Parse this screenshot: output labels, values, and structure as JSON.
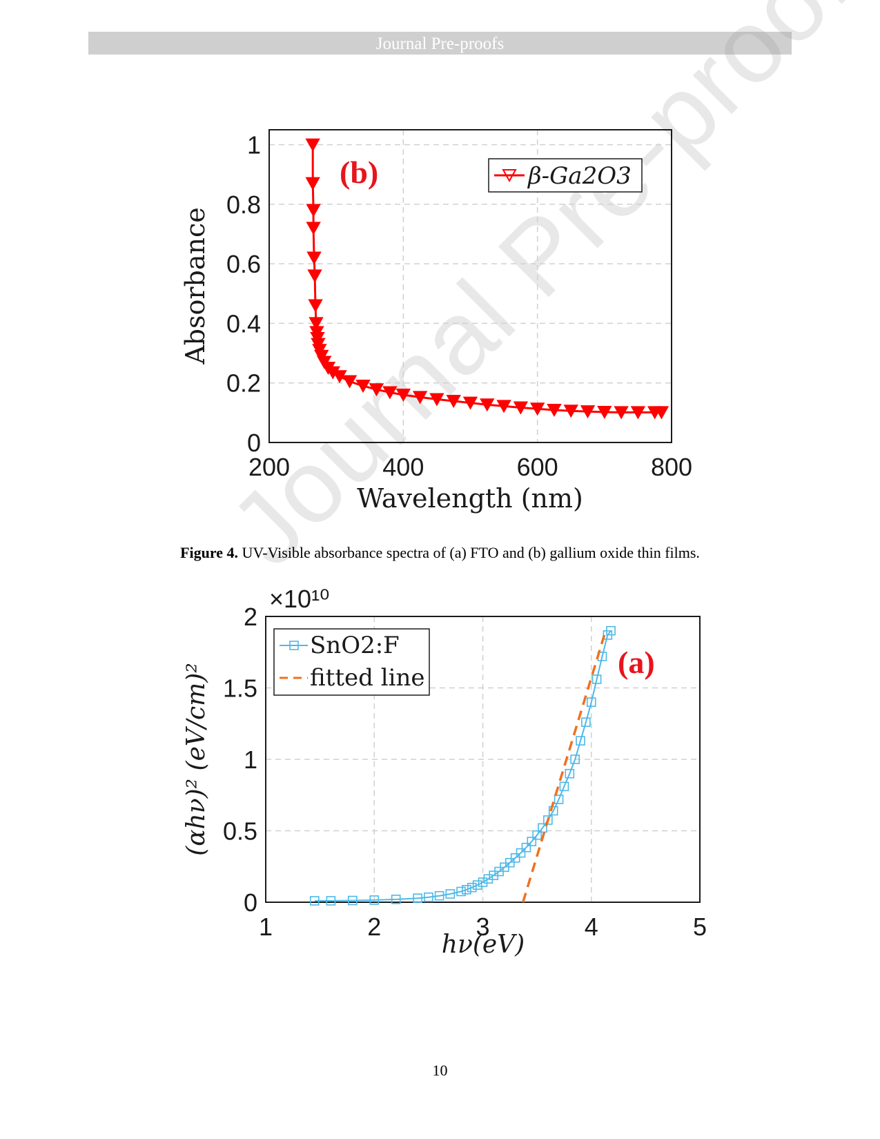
{
  "header": {
    "text": "Journal Pre-proofs"
  },
  "watermark": {
    "text": "Journal Pre-proofs"
  },
  "caption": {
    "label": "Figure 4.",
    "text": " UV-Visible absorbance spectra of (a) FTO and (b) gallium oxide thin films."
  },
  "page_number": "10",
  "colors": {
    "series_b": "#ff0000",
    "series_a": "#4db8e8",
    "fit": "#f07020",
    "panel_label": "#e8141c"
  },
  "chart_data": [
    {
      "type": "line",
      "panel_label": "(b)",
      "xlabel": "Wavelength (nm)",
      "ylabel": "Absorbance",
      "xlim": [
        200,
        800
      ],
      "ylim": [
        0,
        1.05
      ],
      "xticks": [
        200,
        400,
        600,
        800
      ],
      "xtick_labels": [
        "200",
        "400",
        "600",
        "800"
      ],
      "yticks": [
        0,
        0.2,
        0.4,
        0.6,
        0.8,
        1
      ],
      "ytick_labels": [
        "0",
        "0.2",
        "0.4",
        "0.6",
        "0.8",
        "1"
      ],
      "grid": true,
      "legend": "top-right",
      "marker": "triangle-down",
      "series": [
        {
          "name": "β-Ga2O3",
          "x": [
            265,
            265,
            266,
            266,
            267,
            268,
            269,
            270,
            271,
            272,
            273,
            275,
            278,
            282,
            288,
            295,
            305,
            320,
            340,
            360,
            380,
            400,
            425,
            450,
            475,
            500,
            525,
            550,
            575,
            600,
            625,
            650,
            675,
            700,
            725,
            750,
            775,
            785
          ],
          "y": [
            1.0,
            0.87,
            0.78,
            0.72,
            0.62,
            0.56,
            0.46,
            0.4,
            0.37,
            0.35,
            0.33,
            0.31,
            0.29,
            0.27,
            0.25,
            0.235,
            0.222,
            0.205,
            0.19,
            0.178,
            0.168,
            0.16,
            0.152,
            0.145,
            0.139,
            0.133,
            0.127,
            0.122,
            0.117,
            0.113,
            0.109,
            0.106,
            0.104,
            0.102,
            0.101,
            0.101,
            0.101,
            0.101
          ]
        }
      ]
    },
    {
      "type": "line",
      "panel_label": "(a)",
      "xlabel": "hν(eV)",
      "ylabel": "(αhν)² (eV/cm)²",
      "y_multiplier": "×10¹⁰",
      "xlim": [
        1,
        5
      ],
      "ylim": [
        0,
        2
      ],
      "xticks": [
        1,
        2,
        3,
        4,
        5
      ],
      "xtick_labels": [
        "1",
        "2",
        "3",
        "4",
        "5"
      ],
      "yticks": [
        0,
        0.5,
        1,
        1.5,
        2
      ],
      "ytick_labels": [
        "0",
        "0.5",
        "1",
        "1.5",
        "2"
      ],
      "grid": true,
      "legend": "top-left",
      "series": [
        {
          "name": "SnO2:F",
          "marker": "square",
          "x": [
            1.45,
            1.6,
            1.8,
            2.0,
            2.2,
            2.4,
            2.5,
            2.6,
            2.7,
            2.8,
            2.85,
            2.9,
            2.95,
            3.0,
            3.05,
            3.1,
            3.15,
            3.2,
            3.25,
            3.3,
            3.35,
            3.4,
            3.45,
            3.5,
            3.55,
            3.6,
            3.65,
            3.7,
            3.75,
            3.8,
            3.85,
            3.9,
            3.95,
            4.0,
            4.05,
            4.1,
            4.15,
            4.18
          ],
          "y": [
            0.01,
            0.01,
            0.012,
            0.015,
            0.02,
            0.028,
            0.035,
            0.045,
            0.058,
            0.075,
            0.088,
            0.103,
            0.12,
            0.14,
            0.163,
            0.188,
            0.215,
            0.245,
            0.277,
            0.31,
            0.345,
            0.383,
            0.425,
            0.47,
            0.52,
            0.575,
            0.64,
            0.72,
            0.81,
            0.9,
            1.0,
            1.13,
            1.26,
            1.4,
            1.56,
            1.72,
            1.87,
            1.9
          ]
        },
        {
          "name": "fitted line",
          "style": "dashed",
          "x": [
            3.37,
            4.12
          ],
          "y": [
            0.0,
            1.87
          ]
        }
      ]
    }
  ]
}
